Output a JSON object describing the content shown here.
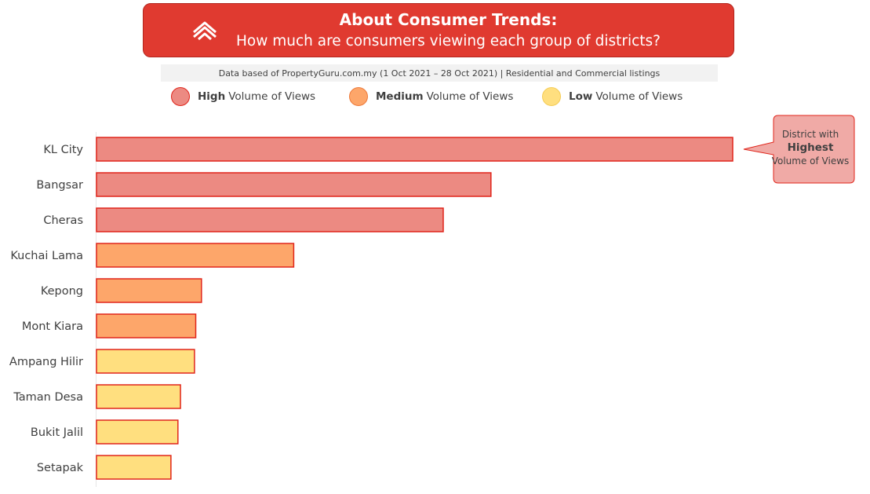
{
  "header": {
    "title": "About Consumer Trends:",
    "subtitle": "How much are consumers viewing each group of districts?"
  },
  "source_note": "Data based of PropertyGuru.com.my (1 Oct 2021 – 28 Oct 2021) | Residential and Commercial listings",
  "legend": [
    {
      "bold": "High",
      "rest": "Volume of Views",
      "color": "#ec8a82"
    },
    {
      "bold": "Medium",
      "rest": "Volume of Views",
      "color": "#fda66a"
    },
    {
      "bold": "Low",
      "rest": "Volume of Views",
      "color": "#ffdf7f"
    }
  ],
  "callout": {
    "line1": "District with",
    "line2": "Highest",
    "line3": "Volume of Views"
  },
  "colors": {
    "brand_red": "#e03a30",
    "bar_border": "#e0251b",
    "high": "#ec8a82",
    "medium": "#fda66a",
    "low": "#ffdf7f"
  },
  "chart_data": {
    "type": "bar",
    "orientation": "horizontal",
    "categories": [
      "KL City",
      "Bangsar",
      "Cheras",
      "Kuchai Lama",
      "Kepong",
      "Mont Kiara",
      "Ampang Hilir",
      "Taman Desa",
      "Bukit Jalil",
      "Setapak"
    ],
    "values": [
      100,
      62,
      54.5,
      31,
      16.5,
      15.6,
      15.4,
      13.2,
      12.8,
      11.7
    ],
    "groups": [
      "High",
      "High",
      "High",
      "Medium",
      "Medium",
      "Medium",
      "Low",
      "Low",
      "Low",
      "Low"
    ],
    "value_axis_visible": false,
    "grid": false
  }
}
